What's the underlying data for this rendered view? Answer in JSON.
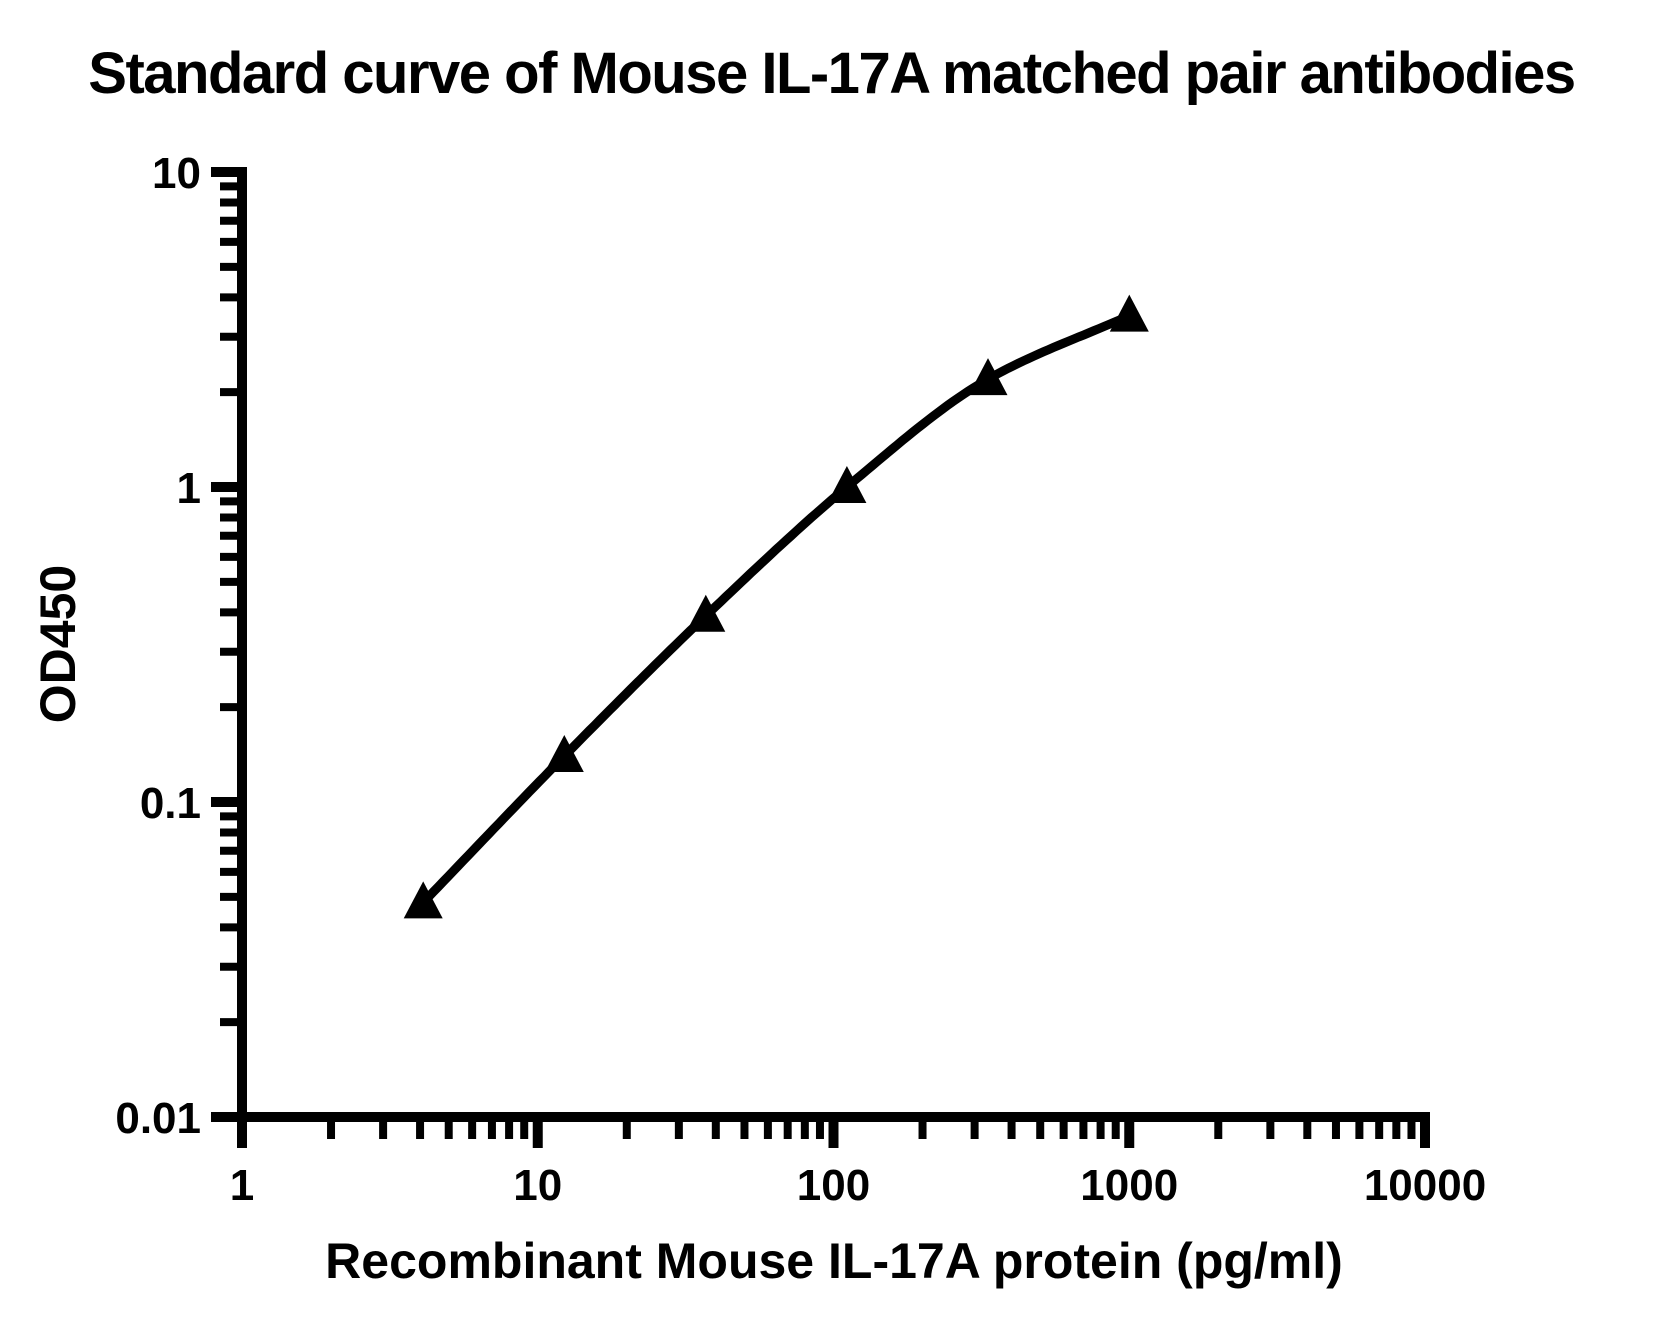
{
  "title": "Standard curve of Mouse IL-17A matched pair antibodies",
  "colors": {
    "foreground": "#000000",
    "background": "#ffffff"
  },
  "chart_data": {
    "type": "line",
    "title": "Standard curve of Mouse IL-17A matched pair antibodies",
    "xlabel": "Recombinant Mouse IL-17A protein (pg/ml)",
    "ylabel": "OD450",
    "x_scale": "log",
    "y_scale": "log",
    "xlim": [
      1,
      10000
    ],
    "ylim": [
      0.01,
      10
    ],
    "grid": false,
    "legend": false,
    "x_ticks": [
      {
        "value": 1,
        "label": "1"
      },
      {
        "value": 10,
        "label": "10"
      },
      {
        "value": 100,
        "label": "100"
      },
      {
        "value": 1000,
        "label": "1000"
      },
      {
        "value": 10000,
        "label": "10000"
      }
    ],
    "y_ticks": [
      {
        "value": 10,
        "label": "10"
      },
      {
        "value": 1,
        "label": "1"
      },
      {
        "value": 0.1,
        "label": "0.1"
      },
      {
        "value": 0.01,
        "label": "0.01"
      }
    ],
    "minor_tick_multiples": [
      2,
      3,
      4,
      5,
      6,
      7,
      8,
      9
    ],
    "series": [
      {
        "marker": "triangle",
        "color": "#000000",
        "x": [
          4.1,
          12.3,
          37,
          111,
          333,
          1000
        ],
        "y": [
          0.048,
          0.14,
          0.39,
          1.0,
          2.2,
          3.5
        ]
      }
    ]
  }
}
